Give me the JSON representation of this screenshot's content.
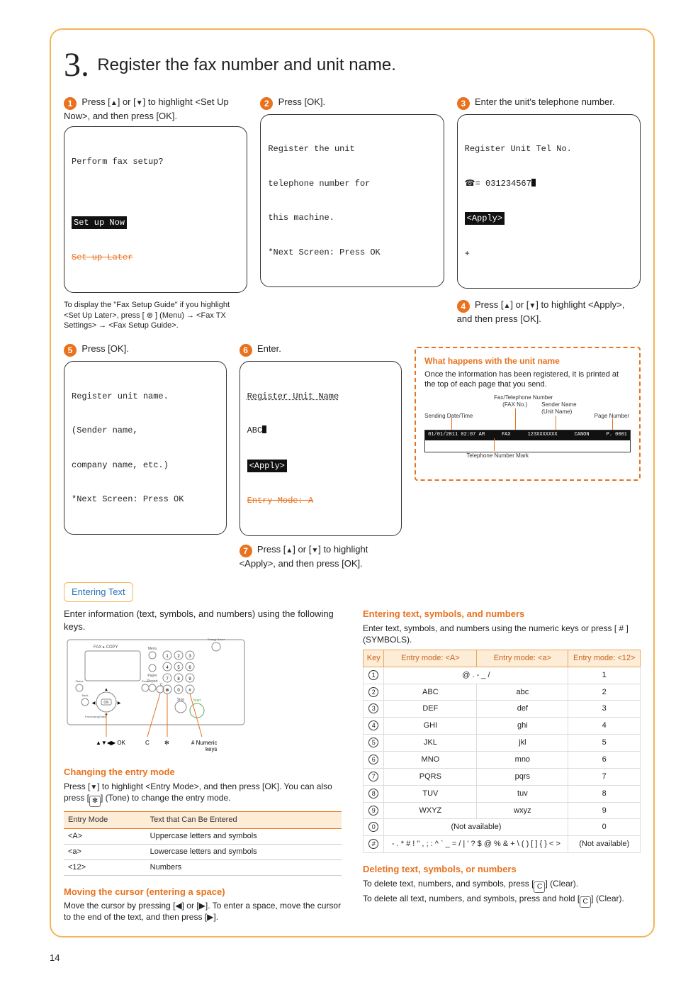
{
  "section": {
    "number": "3.",
    "title": "Register the fax number and unit name."
  },
  "steps": {
    "s1": {
      "num": "1",
      "text_pre": "Press [",
      "text_mid": "] or [",
      "text_post": "] to highlight <Set Up Now>, and then press [OK]."
    },
    "s2": {
      "num": "2",
      "text": "Press [OK]."
    },
    "s3": {
      "num": "3",
      "text": "Enter the unit's telephone number."
    },
    "s4": {
      "num": "4",
      "text_pre": "Press [",
      "text_mid": "] or [",
      "text_post": "] to highlight <Apply>, and then press [OK]."
    },
    "s5": {
      "num": "5",
      "text": "Press [OK]."
    },
    "s6": {
      "num": "6",
      "text": "Enter."
    },
    "s7": {
      "num": "7",
      "text_pre": "Press [",
      "text_mid": "] or [",
      "text_post": "] to highlight <Apply>, and then press [OK]."
    }
  },
  "lcd1": {
    "line1": "Perform fax setup?",
    "sel": "Set up Now",
    "strk": "Set up Later"
  },
  "lcd2": {
    "l1": "Register the unit",
    "l2": "telephone number for",
    "l3": "this machine.",
    "l4": "*Next Screen: Press OK"
  },
  "lcd3": {
    "l1": "Register Unit Tel No.",
    "tel_prefix": "☎= ",
    "tel": "031234567",
    "apply": "<Apply>",
    "plus": "+"
  },
  "lcd5": {
    "l1": "Register unit name.",
    "l2": "(Sender name,",
    "l3": "company name, etc.)",
    "l4": "*Next Screen: Press OK"
  },
  "lcd6": {
    "l1": "Register Unit Name",
    "val": "ABC",
    "apply": "<Apply>",
    "mode": "Entry Mode: A"
  },
  "note1": "To display the \"Fax Setup Guide\" if you highlight <Set Up Later>, press [ ⊛ ] (Menu) → <Fax TX Settings> → <Fax Setup Guide>.",
  "dash": {
    "title": "What happens with the unit name",
    "body": "Once the information has been registered, it is printed at the top of each page that you send.",
    "lbl_fax": "Fax/Telephone Number",
    "lbl_faxno": "(FAX No.)",
    "lbl_sender": "Sender Name",
    "lbl_unit": "(Unit Name)",
    "lbl_date": "Sending Date/Time",
    "lbl_page": "Page Number",
    "lbl_telmark": "Telephone Number Mark",
    "bar_date": "01/01/2011 02:07 AM",
    "bar_fax": "FAX",
    "bar_num": "123XXXXXXX",
    "bar_name": "CANON",
    "bar_page": "P. 0001"
  },
  "entering": {
    "heading": "Entering Text",
    "intro": "Enter information (text, symbols, and numbers) using the following keys.",
    "panel_caption_nav": "▲▼◀▶ OK",
    "panel_caption_c": "C",
    "panel_caption_star": "✻",
    "panel_caption_num": "# Numeric keys"
  },
  "change_mode": {
    "title": "Changing the entry mode",
    "body_pre": "Press [",
    "body_mid": "] to highlight <Entry Mode>, and then press [OK]. You can also press [",
    "body_post": "] (Tone) to change the entry mode."
  },
  "mode_table": {
    "h1": "Entry Mode",
    "h2": "Text that Can Be Entered",
    "r1a": "<A>",
    "r1b": "Uppercase letters and symbols",
    "r2a": "<a>",
    "r2b": "Lowercase letters and symbols",
    "r3a": "<12>",
    "r3b": "Numbers"
  },
  "moving": {
    "title": "Moving the cursor (entering a space)",
    "body": "Move the cursor by pressing [◀] or [▶]. To enter a space, move the cursor to the end of the text, and then press [▶]."
  },
  "entering2": {
    "title": "Entering text, symbols, and numbers",
    "body": "Enter text, symbols, and numbers using the numeric keys or press [ # ] (SYMBOLS)."
  },
  "keys_table": {
    "h1": "Key",
    "h2": "Entry mode: <A>",
    "h3": "Entry mode: <a>",
    "h4": "Entry mode: <12>",
    "rows": [
      {
        "k": "1",
        "a": "@ . - _ /",
        "b": "",
        "n": "1",
        "span": true
      },
      {
        "k": "2",
        "a": "ABC",
        "b": "abc",
        "n": "2"
      },
      {
        "k": "3",
        "a": "DEF",
        "b": "def",
        "n": "3"
      },
      {
        "k": "4",
        "a": "GHI",
        "b": "ghi",
        "n": "4"
      },
      {
        "k": "5",
        "a": "JKL",
        "b": "jkl",
        "n": "5"
      },
      {
        "k": "6",
        "a": "MNO",
        "b": "mno",
        "n": "6"
      },
      {
        "k": "7",
        "a": "PQRS",
        "b": "pqrs",
        "n": "7"
      },
      {
        "k": "8",
        "a": "TUV",
        "b": "tuv",
        "n": "8"
      },
      {
        "k": "9",
        "a": "WXYZ",
        "b": "wxyz",
        "n": "9"
      },
      {
        "k": "0",
        "a": "(Not available)",
        "b": "",
        "n": "0",
        "span": true
      },
      {
        "k": "#",
        "a": "- . * # ! \" , ; : ^ ` _ = / | ' ? $ @ % & + \\ ( ) [ ] { } < >",
        "b": "",
        "n": "(Not available)",
        "span": true
      }
    ]
  },
  "deleting": {
    "title": "Deleting text, symbols, or numbers",
    "l1_pre": "To delete text, numbers, and symbols, press [",
    "l1_post": "] (Clear).",
    "l2_pre": "To delete all text, numbers, and symbols, press and hold [",
    "l2_post": "] (Clear)."
  },
  "page_number": "14",
  "colors": {
    "orange": "#e8721e",
    "border": "#f4b558",
    "blue": "#2a6fb5",
    "peach": "#fdecd6"
  }
}
